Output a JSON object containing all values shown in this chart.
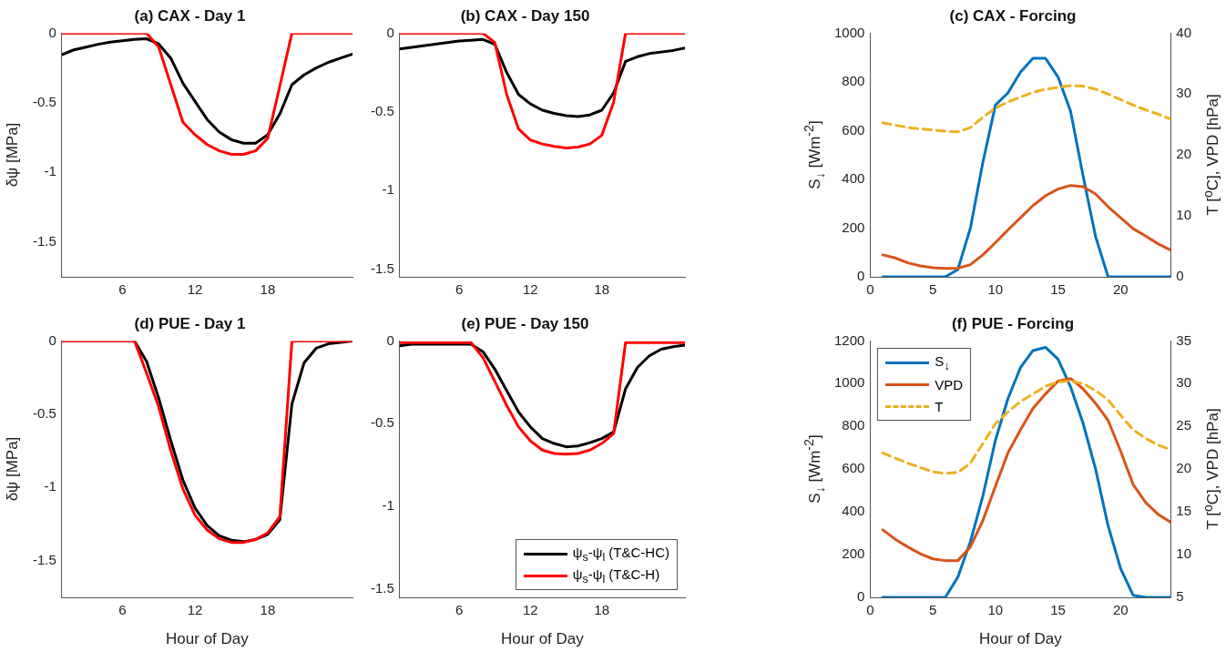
{
  "chart_data": [
    {
      "type": "line",
      "title": "(a) CAX - Day 1",
      "ylabel": "δψ [MPa]",
      "x": [
        1,
        2,
        3,
        4,
        5,
        6,
        7,
        8,
        9,
        10,
        11,
        12,
        13,
        14,
        15,
        16,
        17,
        18,
        19,
        20,
        21,
        22,
        23,
        24,
        25
      ],
      "xlim": [
        1,
        25
      ],
      "xticks": [
        6,
        12,
        18
      ],
      "ylim": [
        -1.75,
        0
      ],
      "yticks": [
        -1.5,
        -1,
        -0.5,
        0
      ],
      "grid": false,
      "series": [
        {
          "color": "#000000",
          "values": [
            -0.155,
            -0.12,
            -0.1,
            -0.08,
            -0.065,
            -0.055,
            -0.045,
            -0.04,
            -0.077,
            -0.18,
            -0.36,
            -0.49,
            -0.62,
            -0.71,
            -0.765,
            -0.79,
            -0.79,
            -0.73,
            -0.58,
            -0.37,
            -0.3,
            -0.25,
            -0.21,
            -0.18,
            -0.15
          ]
        },
        {
          "color": "#ff0000",
          "values": [
            0,
            0,
            0,
            0,
            0,
            0,
            0,
            0,
            -0.1,
            -0.37,
            -0.64,
            -0.73,
            -0.8,
            -0.845,
            -0.87,
            -0.87,
            -0.845,
            -0.755,
            -0.38,
            0,
            0,
            0,
            0,
            0,
            0
          ]
        }
      ]
    },
    {
      "type": "line",
      "title": "(b) CAX - Day 150",
      "x": [
        1,
        2,
        3,
        4,
        5,
        6,
        7,
        8,
        9,
        10,
        11,
        12,
        13,
        14,
        15,
        16,
        17,
        18,
        19,
        20,
        21,
        22,
        23,
        24,
        25
      ],
      "xlim": [
        1,
        25
      ],
      "xticks": [
        6,
        12,
        18
      ],
      "ylim": [
        -1.55,
        0
      ],
      "yticks": [
        -1.5,
        -1,
        -0.5,
        0
      ],
      "grid": false,
      "series": [
        {
          "color": "#000000",
          "values": [
            -0.1,
            -0.09,
            -0.08,
            -0.07,
            -0.06,
            -0.05,
            -0.045,
            -0.04,
            -0.07,
            -0.25,
            -0.39,
            -0.45,
            -0.49,
            -0.51,
            -0.525,
            -0.53,
            -0.52,
            -0.49,
            -0.38,
            -0.18,
            -0.15,
            -0.13,
            -0.12,
            -0.11,
            -0.095
          ]
        },
        {
          "color": "#ff0000",
          "values": [
            0,
            0,
            0,
            0,
            0,
            0,
            0,
            0,
            -0.06,
            -0.39,
            -0.61,
            -0.68,
            -0.705,
            -0.72,
            -0.73,
            -0.725,
            -0.705,
            -0.65,
            -0.44,
            0,
            0,
            0,
            0,
            0,
            0
          ]
        }
      ]
    },
    {
      "type": "line",
      "title": "(c) CAX - Forcing",
      "ylabel": "S$_{↓}$ [Wm$^{-2}$]",
      "y2label": "T [$^{o}$C], VPD [hPa]",
      "x": [
        1,
        2,
        3,
        4,
        5,
        6,
        7,
        8,
        9,
        10,
        11,
        12,
        13,
        14,
        15,
        16,
        17,
        18,
        19,
        20,
        21,
        22,
        23,
        24
      ],
      "xlim": [
        0,
        24
      ],
      "xticks": [
        0,
        5,
        10,
        15,
        20
      ],
      "ylim": [
        0,
        1000
      ],
      "yticks": [
        0,
        200,
        400,
        600,
        800,
        1000
      ],
      "y2lim": [
        0,
        40
      ],
      "y2ticks": [
        0,
        10,
        20,
        30,
        40
      ],
      "grid": false,
      "series": [
        {
          "color": "#0072bd",
          "values": [
            0,
            0,
            0,
            0,
            0,
            0,
            30,
            200,
            470,
            705,
            755,
            840,
            897,
            897,
            820,
            680,
            415,
            165,
            0,
            0,
            0,
            0,
            0,
            0
          ]
        },
        {
          "color": "#d95319",
          "axis": "y2",
          "values": [
            3.6,
            3.1,
            2.3,
            1.8,
            1.5,
            1.4,
            1.4,
            2.0,
            3.6,
            5.6,
            7.7,
            9.7,
            11.7,
            13.3,
            14.4,
            15.0,
            14.8,
            13.6,
            11.5,
            9.7,
            7.9,
            6.7,
            5.4,
            4.4
          ]
        },
        {
          "color": "#edb120",
          "axis": "y2",
          "line_style": "dashed",
          "values": [
            25.3,
            24.9,
            24.5,
            24.3,
            24.1,
            23.9,
            23.8,
            24.5,
            26.2,
            27.7,
            28.7,
            29.5,
            30.3,
            30.8,
            31.1,
            31.4,
            31.3,
            30.8,
            30.0,
            29.1,
            28.2,
            27.4,
            26.7,
            25.9
          ]
        }
      ]
    },
    {
      "type": "line",
      "title": "(d) PUE - Day 1",
      "ylabel": "δψ [MPa]",
      "xlabel": "Hour of Day",
      "x": [
        1,
        2,
        3,
        4,
        5,
        6,
        7,
        8,
        9,
        10,
        11,
        12,
        13,
        14,
        15,
        16,
        17,
        18,
        19,
        20,
        21,
        22,
        23,
        24,
        25
      ],
      "xlim": [
        1,
        25
      ],
      "xticks": [
        6,
        12,
        18
      ],
      "ylim": [
        -1.75,
        0
      ],
      "yticks": [
        -1.5,
        -1,
        -0.5,
        0
      ],
      "grid": false,
      "series": [
        {
          "color": "#000000",
          "values": [
            null,
            null,
            null,
            null,
            null,
            null,
            0,
            -0.14,
            -0.39,
            -0.68,
            -0.95,
            -1.14,
            -1.26,
            -1.33,
            -1.36,
            -1.37,
            -1.355,
            -1.32,
            -1.22,
            -0.43,
            -0.15,
            -0.05,
            -0.02,
            -0.01,
            0
          ]
        },
        {
          "color": "#ff0000",
          "values": [
            0,
            0,
            0,
            0,
            0,
            0,
            0,
            -0.22,
            -0.45,
            -0.75,
            -1.01,
            -1.19,
            -1.29,
            -1.35,
            -1.375,
            -1.375,
            -1.355,
            -1.31,
            -1.2,
            0,
            0,
            0,
            0,
            0,
            0
          ]
        }
      ]
    },
    {
      "type": "line",
      "title": "(e) PUE - Day 150",
      "xlabel": "Hour of Day",
      "x": [
        1,
        2,
        3,
        4,
        5,
        6,
        7,
        8,
        9,
        10,
        11,
        12,
        13,
        14,
        15,
        16,
        17,
        18,
        19,
        20,
        21,
        22,
        23,
        24,
        25
      ],
      "xlim": [
        1,
        25
      ],
      "xticks": [
        6,
        12,
        18
      ],
      "ylim": [
        -1.55,
        0
      ],
      "yticks": [
        -1.5,
        -1,
        -0.5,
        0
      ],
      "grid": false,
      "legend": "bottom right",
      "series": [
        {
          "name": "ψ$_{s}$-ψ$_{l}$ (T&C-HC)",
          "color": "#000000",
          "values": [
            -0.03,
            -0.02,
            -0.02,
            -0.02,
            -0.02,
            -0.02,
            -0.02,
            -0.065,
            -0.17,
            -0.3,
            -0.43,
            -0.52,
            -0.59,
            -0.62,
            -0.64,
            -0.635,
            -0.615,
            -0.59,
            -0.55,
            -0.29,
            -0.16,
            -0.09,
            -0.05,
            -0.035,
            -0.025
          ]
        },
        {
          "name": "ψ$_{s}$-ψ$_{l}$ (T&C-H)",
          "color": "#ff0000",
          "values": [
            -0.01,
            -0.01,
            -0.01,
            -0.01,
            -0.01,
            -0.01,
            -0.01,
            -0.1,
            -0.245,
            -0.39,
            -0.52,
            -0.605,
            -0.66,
            -0.68,
            -0.685,
            -0.68,
            -0.66,
            -0.62,
            -0.56,
            -0.01,
            -0.01,
            -0.01,
            -0.01,
            -0.01,
            -0.01
          ]
        }
      ]
    },
    {
      "type": "line",
      "title": "(f) PUE - Forcing",
      "ylabel": "S$_{↓}$ [Wm$^{-2}$]",
      "y2label": "T [$^{o}$C], VPD [hPa]",
      "xlabel": "Hour of Day",
      "x": [
        1,
        2,
        3,
        4,
        5,
        6,
        7,
        8,
        9,
        10,
        11,
        12,
        13,
        14,
        15,
        16,
        17,
        18,
        19,
        20,
        21,
        22,
        23,
        24
      ],
      "xlim": [
        0,
        24
      ],
      "xticks": [
        0,
        5,
        10,
        15,
        20
      ],
      "ylim": [
        0,
        1200
      ],
      "yticks": [
        0,
        200,
        400,
        600,
        800,
        1000,
        1200
      ],
      "y2lim": [
        5,
        35
      ],
      "y2ticks": [
        5,
        10,
        15,
        20,
        25,
        30,
        35
      ],
      "grid": false,
      "legend": "top left",
      "series": [
        {
          "name": "S$_{↓}$",
          "color": "#0072bd",
          "values": [
            0,
            0,
            0,
            0,
            0,
            0,
            95,
            260,
            475,
            735,
            930,
            1075,
            1155,
            1170,
            1115,
            985,
            815,
            600,
            335,
            135,
            10,
            0,
            0,
            0
          ]
        },
        {
          "name": "VPD",
          "color": "#d95319",
          "axis": "y2",
          "values": [
            12.9,
            11.8,
            10.9,
            10.1,
            9.5,
            9.3,
            9.3,
            10.9,
            14.0,
            18.0,
            21.9,
            24.6,
            27.1,
            28.8,
            30.3,
            30.6,
            29.4,
            27.7,
            25.7,
            22.1,
            18.2,
            16.1,
            14.7,
            13.8
          ]
        },
        {
          "name": "T",
          "color": "#edb120",
          "axis": "y2",
          "line_style": "dashed",
          "values": [
            21.9,
            21.3,
            20.7,
            20.2,
            19.7,
            19.5,
            19.6,
            20.7,
            23.0,
            25.3,
            26.7,
            27.9,
            28.8,
            29.7,
            30.2,
            30.3,
            30.0,
            29.2,
            28.1,
            26.3,
            24.6,
            23.6,
            22.8,
            22.3
          ]
        }
      ]
    }
  ]
}
